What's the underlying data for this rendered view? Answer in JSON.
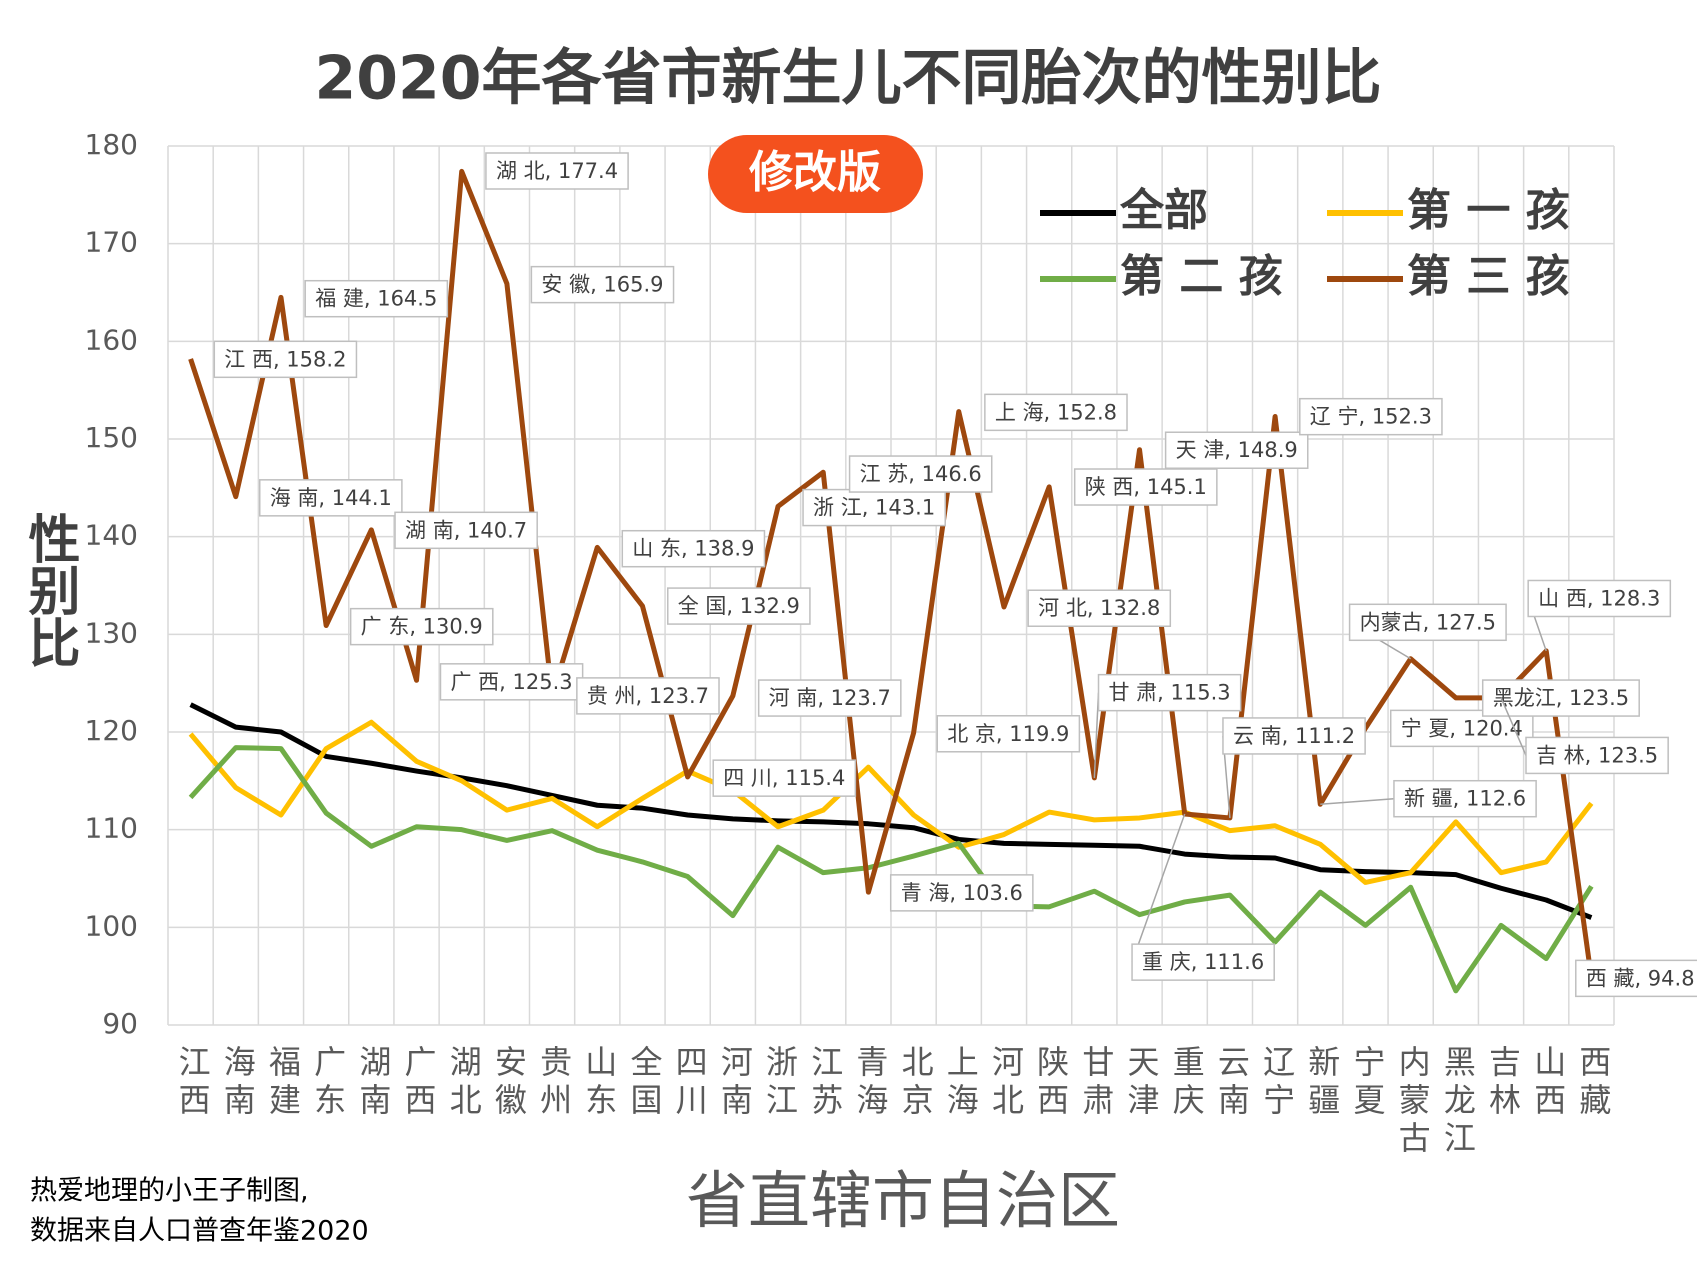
{
  "chart_data": {
    "type": "line",
    "title": "2020年各省市新生儿不同胎次的性别比",
    "subtitle": "修改版",
    "y_label": "性别比",
    "x_label": "省直辖市自治区",
    "notes": [
      "热爱地理的小王子制图,",
      "数据来自人口普查年鉴2020"
    ],
    "categories": [
      "江西",
      "海南",
      "福建",
      "广东",
      "湖南",
      "广西",
      "湖北",
      "安徽",
      "贵州",
      "山东",
      "全国",
      "四川",
      "河南",
      "浙江",
      "江苏",
      "青海",
      "北京",
      "上海",
      "河北",
      "陕西",
      "甘肃",
      "天津",
      "重庆",
      "云南",
      "辽宁",
      "新疆",
      "宁夏",
      "内蒙古",
      "黑龙江",
      "吉林",
      "山西",
      "西藏"
    ],
    "ylim": [
      90,
      180
    ],
    "yticks": [
      90,
      100,
      110,
      120,
      130,
      140,
      150,
      160,
      170,
      180
    ],
    "grid": true,
    "legend": "top-right",
    "series": [
      {
        "name": "全部",
        "color": "#000000",
        "values": [
          122.8,
          120.5,
          120,
          117.5,
          116.8,
          116,
          115.3,
          114.5,
          113.5,
          112.5,
          112.2,
          111.5,
          111.1,
          110.9,
          110.8,
          110.6,
          110.2,
          109,
          108.6,
          108.5,
          108.4,
          108.3,
          107.5,
          107.2,
          107.1,
          105.9,
          105.7,
          105.6,
          105.4,
          104,
          102.8,
          101
        ]
      },
      {
        "name": "第 一 孩",
        "color": "#FFC000",
        "values": [
          119.8,
          114.3,
          111.5,
          118.3,
          121,
          117,
          115,
          112,
          113.2,
          110.3,
          113.2,
          116,
          114,
          110.3,
          112,
          116.4,
          111.5,
          108.2,
          109.5,
          111.8,
          111,
          111.2,
          111.8,
          109.9,
          110.4,
          108.5,
          104.6,
          105.6,
          110.8,
          105.6,
          106.7,
          112.7
        ]
      },
      {
        "name": "第 二 孩",
        "color": "#70AD47",
        "values": [
          113.3,
          118.4,
          118.3,
          111.7,
          108.3,
          110.3,
          110,
          108.9,
          109.9,
          107.9,
          106.7,
          105.2,
          101.2,
          108.2,
          105.6,
          106.1,
          107.3,
          108.6,
          102.2,
          102.1,
          103.7,
          101.3,
          102.6,
          103.3,
          98.5,
          103.6,
          100.2,
          104.1,
          93.5,
          100.2,
          96.8,
          104.2
        ]
      },
      {
        "name": "第 三 孩",
        "color": "#9E480E",
        "values": [
          158.2,
          144.1,
          164.5,
          130.9,
          140.7,
          125.3,
          177.4,
          165.9,
          123.7,
          138.9,
          132.9,
          115.4,
          123.7,
          143.1,
          146.6,
          103.6,
          119.9,
          152.8,
          132.8,
          145.1,
          115.3,
          148.9,
          111.6,
          111.2,
          152.3,
          112.6,
          120.4,
          127.5,
          123.5,
          123.5,
          128.3,
          94.8
        ],
        "value_labels": [
          "江 西, 158.2",
          "海 南, 144.1",
          "福 建, 164.5",
          "广 东, 130.9",
          "湖 南, 140.7",
          "广 西, 125.3",
          "湖 北, 177.4",
          "安 徽, 165.9",
          "贵 州, 123.7",
          "山 东, 138.9",
          "全 国, 132.9",
          "四 川, 115.4",
          "河 南, 123.7",
          "浙 江, 143.1",
          "江 苏, 146.6",
          "青 海, 103.6",
          "北 京, 119.9",
          "上 海, 152.8",
          "河 北, 132.8",
          "陕 西, 145.1",
          "甘 肃, 115.3",
          "天 津, 148.9",
          "重 庆, 111.6",
          "云 南, 111.2",
          "辽 宁, 152.3",
          "新 疆, 112.6",
          "宁 夏, 120.4",
          "内蒙古, 127.5",
          "黑龙江, 123.5",
          "吉 林, 123.5",
          "山 西, 128.3",
          "西 藏, 94.8"
        ]
      }
    ]
  }
}
